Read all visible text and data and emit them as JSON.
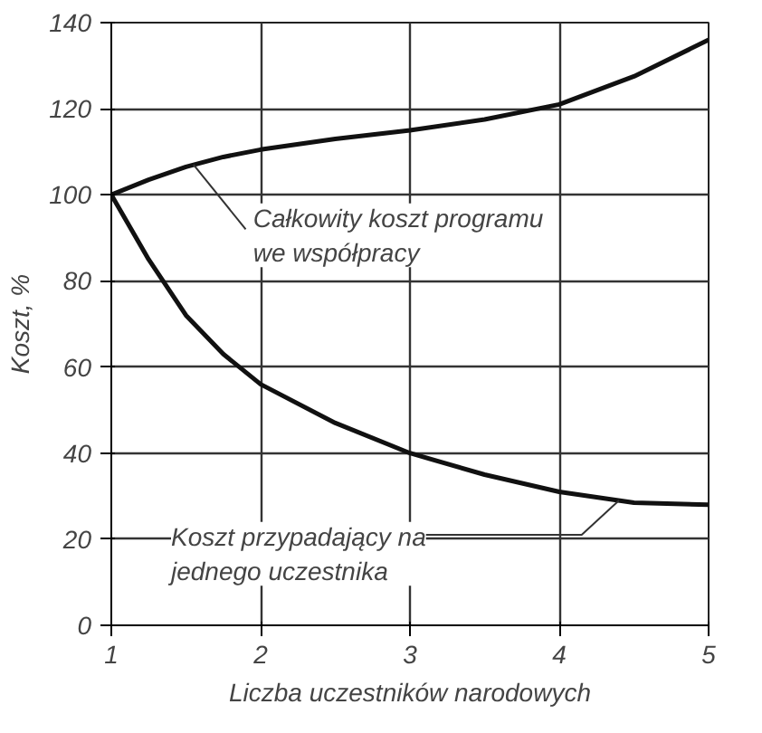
{
  "chart_data": {
    "type": "line",
    "xlabel": "Liczba uczestników narodowych",
    "ylabel": "Koszt, %",
    "x": [
      1,
      1.25,
      1.5,
      1.75,
      2,
      2.5,
      3,
      3.5,
      4,
      4.5,
      5
    ],
    "series": [
      {
        "color": "#111111",
        "values": [
          100,
          103.5,
          106.5,
          108.8,
          110.5,
          113,
          115,
          117.5,
          121,
          127.5,
          136
        ]
      },
      {
        "color": "#111111",
        "values": [
          100,
          85,
          72,
          63,
          56,
          47,
          40,
          35,
          31,
          28.5,
          28
        ]
      }
    ],
    "annotations": [
      {
        "text": "Całkowity koszt programu\nwe współpracy",
        "x": 1.55,
        "y": 107
      },
      {
        "text": "Koszt przypadający na\njednego uczestnika",
        "x": 4.4,
        "y": 29
      }
    ],
    "xlim": [
      1,
      5
    ],
    "ylim": [
      0,
      140
    ],
    "xticks": [
      1,
      2,
      3,
      4,
      5
    ],
    "yticks": [
      0,
      20,
      40,
      60,
      80,
      100,
      120,
      140
    ],
    "grid": true,
    "line_style": "solid",
    "marker": "none"
  }
}
